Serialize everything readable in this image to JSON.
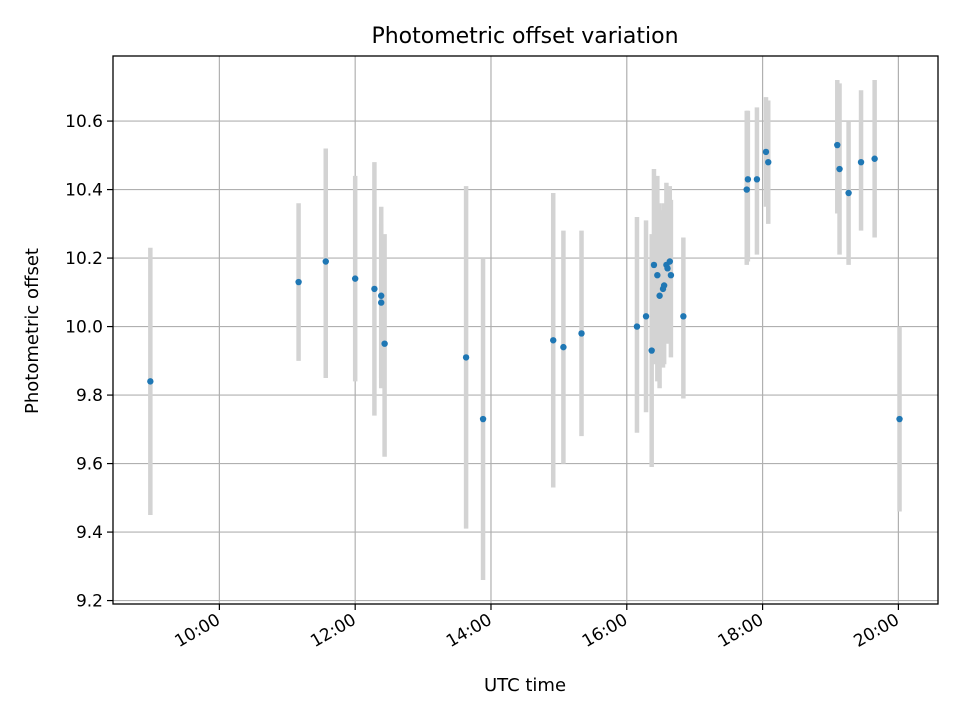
{
  "chart_data": {
    "type": "scatter",
    "title": "Photometric offset variation",
    "xlabel": "UTC time",
    "ylabel": "Photometric offset",
    "grid": true,
    "xlim": [
      "08:26",
      "20:35"
    ],
    "ylim": [
      9.19,
      10.79
    ],
    "x_ticks": [
      "10:00",
      "12:00",
      "14:00",
      "16:00",
      "18:00",
      "20:00"
    ],
    "y_ticks": [
      9.2,
      9.4,
      9.6,
      9.8,
      10.0,
      10.2,
      10.4,
      10.6
    ],
    "y_tick_labels": [
      "9.2",
      "9.4",
      "9.6",
      "9.8",
      "10.0",
      "10.2",
      "10.4",
      "10.6"
    ],
    "colors": {
      "marker": "#1f77b4",
      "errorbar": "#d3d3d3",
      "grid": "#b0b0b0"
    },
    "series": [
      {
        "points": [
          {
            "x": "08:59",
            "y": 9.84,
            "err_low": 9.45,
            "err_high": 10.23
          },
          {
            "x": "11:10",
            "y": 10.13,
            "err_low": 9.9,
            "err_high": 10.36
          },
          {
            "x": "11:34",
            "y": 10.19,
            "err_low": 9.85,
            "err_high": 10.52
          },
          {
            "x": "12:00",
            "y": 10.14,
            "err_low": 9.84,
            "err_high": 10.44
          },
          {
            "x": "12:17",
            "y": 10.11,
            "err_low": 9.74,
            "err_high": 10.48
          },
          {
            "x": "12:23",
            "y": 10.09,
            "err_low": 9.82,
            "err_high": 10.35
          },
          {
            "x": "12:23",
            "y": 10.07,
            "err_low": 9.85,
            "err_high": 10.3
          },
          {
            "x": "12:26",
            "y": 9.95,
            "err_low": 9.62,
            "err_high": 10.27
          },
          {
            "x": "13:38",
            "y": 9.91,
            "err_low": 9.41,
            "err_high": 10.41
          },
          {
            "x": "13:53",
            "y": 9.73,
            "err_low": 9.26,
            "err_high": 10.2
          },
          {
            "x": "14:55",
            "y": 9.96,
            "err_low": 9.53,
            "err_high": 10.39
          },
          {
            "x": "15:04",
            "y": 9.94,
            "err_low": 9.6,
            "err_high": 10.28
          },
          {
            "x": "15:20",
            "y": 9.98,
            "err_low": 9.68,
            "err_high": 10.28
          },
          {
            "x": "16:09",
            "y": 10.0,
            "err_low": 9.69,
            "err_high": 10.32
          },
          {
            "x": "16:17",
            "y": 10.03,
            "err_low": 9.75,
            "err_high": 10.31
          },
          {
            "x": "16:22",
            "y": 9.93,
            "err_low": 9.59,
            "err_high": 10.27
          },
          {
            "x": "16:24",
            "y": 10.18,
            "err_low": 9.89,
            "err_high": 10.46
          },
          {
            "x": "16:27",
            "y": 10.15,
            "err_low": 9.84,
            "err_high": 10.44
          },
          {
            "x": "16:29",
            "y": 10.09,
            "err_low": 9.82,
            "err_high": 10.36
          },
          {
            "x": "16:32",
            "y": 10.11,
            "err_low": 9.88,
            "err_high": 10.34
          },
          {
            "x": "16:33",
            "y": 10.12,
            "err_low": 9.89,
            "err_high": 10.36
          },
          {
            "x": "16:35",
            "y": 10.18,
            "err_low": 9.96,
            "err_high": 10.42
          },
          {
            "x": "16:36",
            "y": 10.17,
            "err_low": 9.95,
            "err_high": 10.4
          },
          {
            "x": "16:38",
            "y": 10.19,
            "err_low": 9.96,
            "err_high": 10.41
          },
          {
            "x": "16:39",
            "y": 10.15,
            "err_low": 9.91,
            "err_high": 10.37
          },
          {
            "x": "16:50",
            "y": 10.03,
            "err_low": 9.79,
            "err_high": 10.26
          },
          {
            "x": "17:46",
            "y": 10.4,
            "err_low": 10.18,
            "err_high": 10.63
          },
          {
            "x": "17:47",
            "y": 10.43,
            "err_low": 10.19,
            "err_high": 10.63
          },
          {
            "x": "17:55",
            "y": 10.43,
            "err_low": 10.21,
            "err_high": 10.64
          },
          {
            "x": "18:03",
            "y": 10.51,
            "err_low": 10.35,
            "err_high": 10.67
          },
          {
            "x": "18:05",
            "y": 10.48,
            "err_low": 10.3,
            "err_high": 10.66
          },
          {
            "x": "19:06",
            "y": 10.53,
            "err_low": 10.33,
            "err_high": 10.72
          },
          {
            "x": "19:08",
            "y": 10.46,
            "err_low": 10.21,
            "err_high": 10.71
          },
          {
            "x": "19:16",
            "y": 10.39,
            "err_low": 10.18,
            "err_high": 10.6
          },
          {
            "x": "19:27",
            "y": 10.48,
            "err_low": 10.28,
            "err_high": 10.69
          },
          {
            "x": "19:39",
            "y": 10.49,
            "err_low": 10.26,
            "err_high": 10.72
          },
          {
            "x": "20:01",
            "y": 9.73,
            "err_low": 9.46,
            "err_high": 10.0
          }
        ]
      }
    ]
  }
}
